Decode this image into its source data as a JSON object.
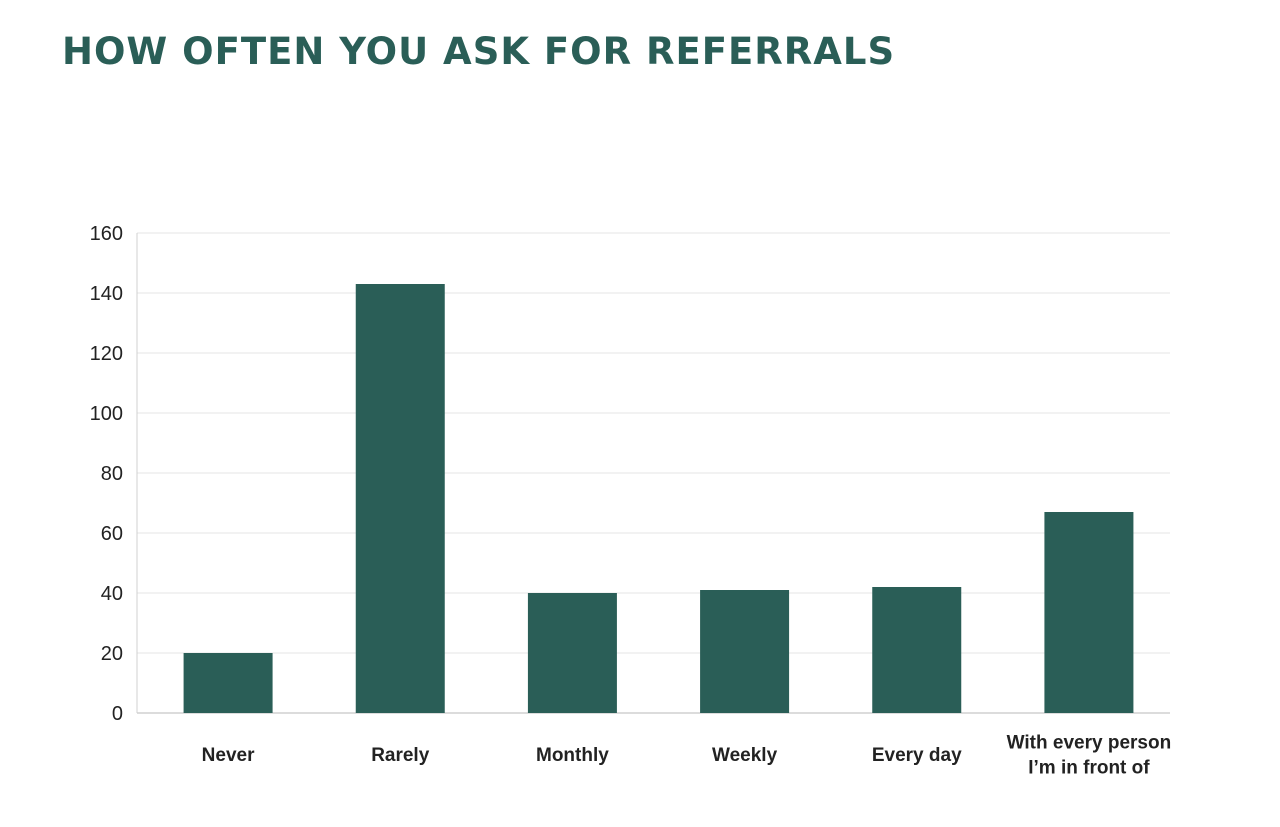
{
  "chart_data": {
    "type": "bar",
    "title": "HOW OFTEN YOU ASK FOR REFERRALS",
    "xlabel": "",
    "ylabel": "",
    "categories": [
      [
        "Never"
      ],
      [
        "Rarely"
      ],
      [
        "Monthly"
      ],
      [
        "Weekly"
      ],
      [
        "Every day"
      ],
      [
        "With every person",
        "I’m in front of"
      ]
    ],
    "values": [
      20,
      143,
      40,
      41,
      42,
      67
    ],
    "ylim": [
      0,
      160
    ],
    "yticks": [
      0,
      20,
      40,
      60,
      80,
      100,
      120,
      140,
      160
    ],
    "grid": true,
    "legend": "none",
    "colors": {
      "bar": "#2a5e57",
      "title": "#2a5e57",
      "grid": "#e6e6e6",
      "axis": "#d0d0d0",
      "text": "#222222"
    }
  }
}
